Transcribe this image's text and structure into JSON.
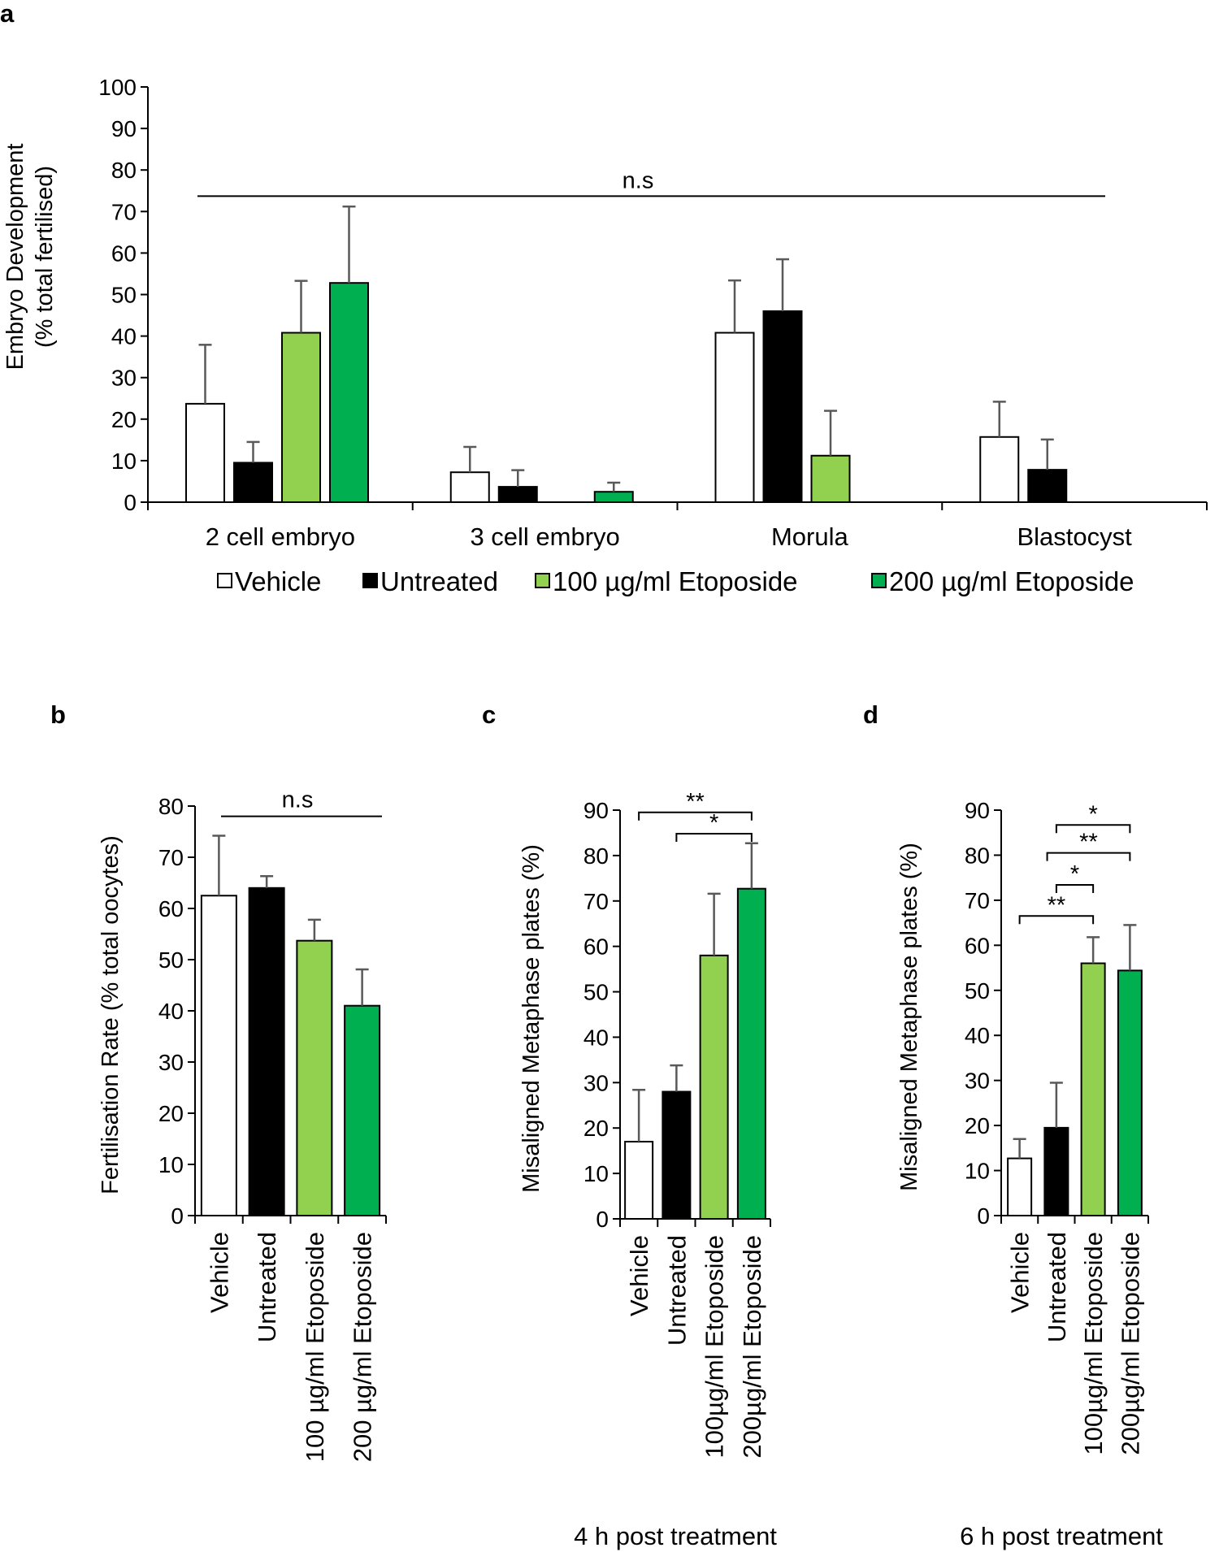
{
  "colors": {
    "vehicle": "#ffffff",
    "untreated": "#000000",
    "etoposide_100": "#92d050",
    "etoposide_200": "#00b050",
    "error_bar": "#595959",
    "axis": "#000000"
  },
  "legend": {
    "items": [
      {
        "label": "Vehicle",
        "color": "#ffffff"
      },
      {
        "label": "Untreated",
        "color": "#000000"
      },
      {
        "label": "100 µg/ml Etoposide",
        "color": "#92d050"
      },
      {
        "label": "200 µg/ml Etoposide",
        "color": "#00b050"
      }
    ]
  },
  "chart_data": [
    {
      "panel": "a",
      "type": "bar",
      "ylabel_line1": "Embryo Development",
      "ylabel_line2": "(% total fertilised)",
      "ylim": [
        0,
        100
      ],
      "yticks": [
        0,
        10,
        20,
        30,
        40,
        50,
        60,
        70,
        80,
        90,
        100
      ],
      "categories": [
        "2 cell embryo",
        "3 cell embryo",
        "Morula",
        "Blastocyst"
      ],
      "series": [
        {
          "name": "Vehicle",
          "values": [
            23.7,
            7.2,
            40.8,
            15.7
          ],
          "errors": [
            14.2,
            6.1,
            12.6,
            8.5
          ]
        },
        {
          "name": "Untreated",
          "values": [
            9.5,
            3.7,
            46.0,
            7.8
          ],
          "errors": [
            5.0,
            4.0,
            12.5,
            7.3
          ]
        },
        {
          "name": "100 µg/ml Etoposide",
          "values": [
            40.8,
            0,
            11.2,
            0
          ],
          "errors": [
            12.5,
            0,
            10.8,
            0
          ]
        },
        {
          "name": "200 µg/ml Etoposide",
          "values": [
            52.8,
            2.5,
            0,
            0
          ],
          "errors": [
            18.4,
            2.2,
            0,
            0
          ]
        }
      ],
      "annotations": [
        {
          "text": "n.s",
          "y": 73.5
        }
      ]
    },
    {
      "panel": "b",
      "type": "bar",
      "ylabel": "Fertilisation Rate (% total oocytes)",
      "ylim": [
        0,
        80
      ],
      "yticks": [
        0,
        10,
        20,
        30,
        40,
        50,
        60,
        70,
        80
      ],
      "categories": [
        "Vehicle",
        "Untreated",
        "100 µg/ml Etoposide",
        "200 µg/ml Etoposide"
      ],
      "values": [
        62.5,
        64.0,
        53.7,
        41.0
      ],
      "errors": [
        11.7,
        2.3,
        4.1,
        7.1
      ],
      "annotations": [
        {
          "text": "n.s",
          "y": 78.0
        }
      ]
    },
    {
      "panel": "c",
      "type": "bar",
      "ylabel": "Misaligned Metaphase plates (%)",
      "ylim": [
        0,
        90
      ],
      "yticks": [
        0,
        10,
        20,
        30,
        40,
        50,
        60,
        70,
        80,
        90
      ],
      "categories": [
        "Vehicle",
        "Untreated",
        "100µg/ml Etoposide",
        "200µg/ml Etoposide"
      ],
      "values": [
        17.0,
        28.0,
        58.0,
        72.7
      ],
      "errors": [
        11.4,
        5.8,
        13.6,
        10.0
      ],
      "footer": "4 h post treatment",
      "significance": [
        {
          "label": "**",
          "from": 0,
          "to": 3,
          "y": 89.5
        },
        {
          "label": "*",
          "from": 1,
          "to": 3,
          "y": 84.8
        }
      ]
    },
    {
      "panel": "d",
      "type": "bar",
      "ylabel": "Misaligned Metaphase plates (%)",
      "ylim": [
        0,
        90
      ],
      "yticks": [
        0,
        10,
        20,
        30,
        40,
        50,
        60,
        70,
        80,
        90
      ],
      "categories": [
        "Vehicle",
        "Untreated",
        "100µg/ml Etoposide",
        "200µg/ml Etoposide"
      ],
      "values": [
        12.7,
        19.5,
        56.0,
        54.4
      ],
      "errors": [
        4.3,
        10.0,
        5.8,
        10.1
      ],
      "footer": "6 h post treatment",
      "significance": [
        {
          "label": "*",
          "from": 1,
          "to": 3,
          "y": 86.7
        },
        {
          "label": "**",
          "from": 0.75,
          "to": 3,
          "y": 80.5
        },
        {
          "label": "*",
          "from": 1,
          "to": 2,
          "y": 73.4
        },
        {
          "label": "**",
          "from": 0,
          "to": 2,
          "y": 66.5
        }
      ]
    }
  ]
}
